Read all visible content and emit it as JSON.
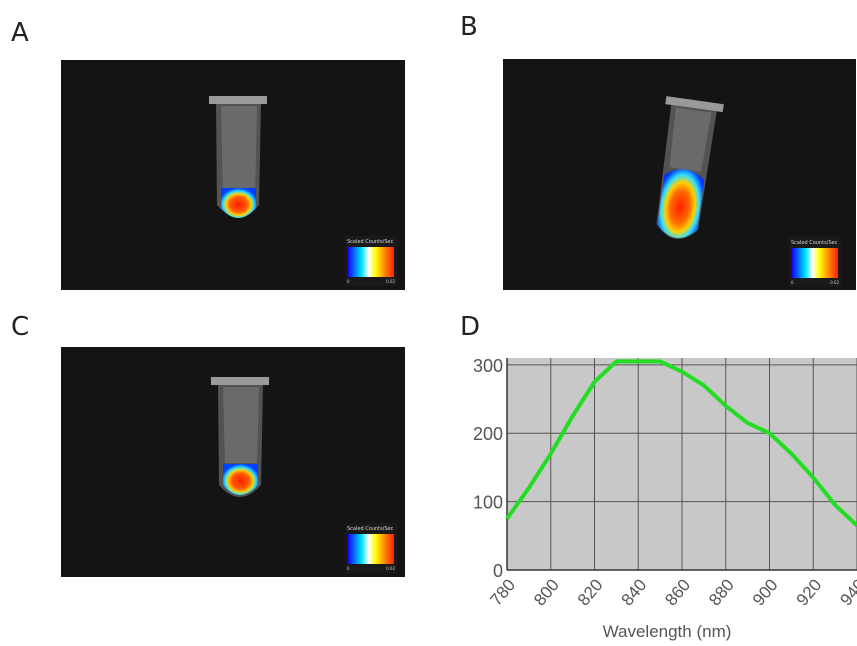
{
  "panels": {
    "a": {
      "letter": "A",
      "scale_title": "Scaled Counts/Sec",
      "scale_min": "0",
      "scale_max": "0.02"
    },
    "b": {
      "letter": "B",
      "scale_title": "Scaled Counts/Sec",
      "scale_min": "0",
      "scale_max": "0.02"
    },
    "c": {
      "letter": "C",
      "scale_title": "Scaled Counts/Sec",
      "scale_min": "0",
      "scale_max": "0.02"
    },
    "d": {
      "letter": "D"
    }
  },
  "colors": {
    "line": "#22dd22",
    "plot_bg": "#c8c8c8",
    "grid": "#555555",
    "image_bg": "#141414"
  },
  "chart_data": {
    "type": "line",
    "title": "",
    "xlabel": "Wavelength (nm)",
    "ylabel": "",
    "xlim": [
      780,
      940
    ],
    "ylim": [
      0,
      310
    ],
    "xticks": [
      780,
      800,
      820,
      840,
      860,
      880,
      900,
      920,
      940
    ],
    "yticks": [
      0,
      100,
      200,
      300
    ],
    "grid": true,
    "series": [
      {
        "x": [
          780,
          790,
          800,
          810,
          820,
          830,
          840,
          850,
          860,
          870,
          880,
          890,
          900,
          910,
          920,
          930,
          940
        ],
        "y": [
          75,
          120,
          170,
          225,
          275,
          305,
          305,
          305,
          290,
          270,
          240,
          215,
          200,
          170,
          135,
          95,
          65
        ]
      }
    ]
  }
}
